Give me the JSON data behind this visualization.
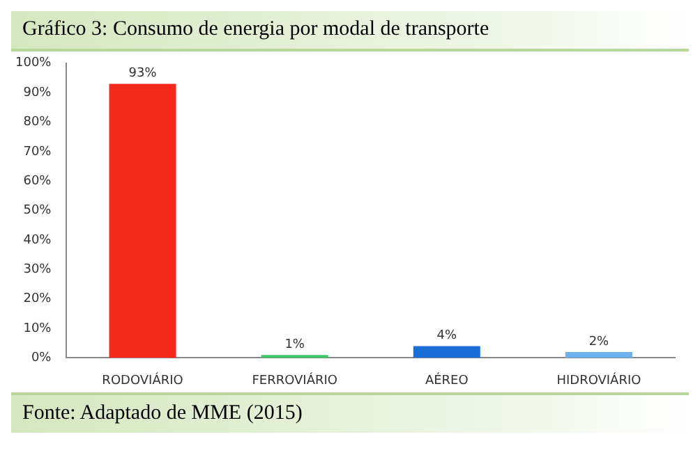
{
  "chart_data": {
    "type": "bar",
    "title": "Gráfico 3: Consumo de energia por modal de transporte",
    "categories": [
      "RODOVIÁRIO",
      "FERROVIÁRIO",
      "AÉREO",
      "HIDROVIÁRIO"
    ],
    "values": [
      93,
      1,
      4,
      2
    ],
    "colors": [
      "#f5281c",
      "#3cc86a",
      "#1a6fd6",
      "#6cb0ec"
    ],
    "value_labels": [
      "93%",
      "1%",
      "4%",
      "2%"
    ],
    "ylim": [
      0,
      100
    ],
    "yticks": [
      {
        "value": 0,
        "label": "0%"
      },
      {
        "value": 10,
        "label": "10%"
      },
      {
        "value": 20,
        "label": "20%"
      },
      {
        "value": 30,
        "label": "30%"
      },
      {
        "value": 40,
        "label": "40%"
      },
      {
        "value": 50,
        "label": "50%"
      },
      {
        "value": 60,
        "label": "60%"
      },
      {
        "value": 70,
        "label": "70%"
      },
      {
        "value": 80,
        "label": "80%"
      },
      {
        "value": 90,
        "label": "90%"
      },
      {
        "value": 100,
        "label": "100%"
      }
    ],
    "grid": false,
    "annotations": [
      "Fonte: Adaptado de MME (2015)"
    ]
  }
}
